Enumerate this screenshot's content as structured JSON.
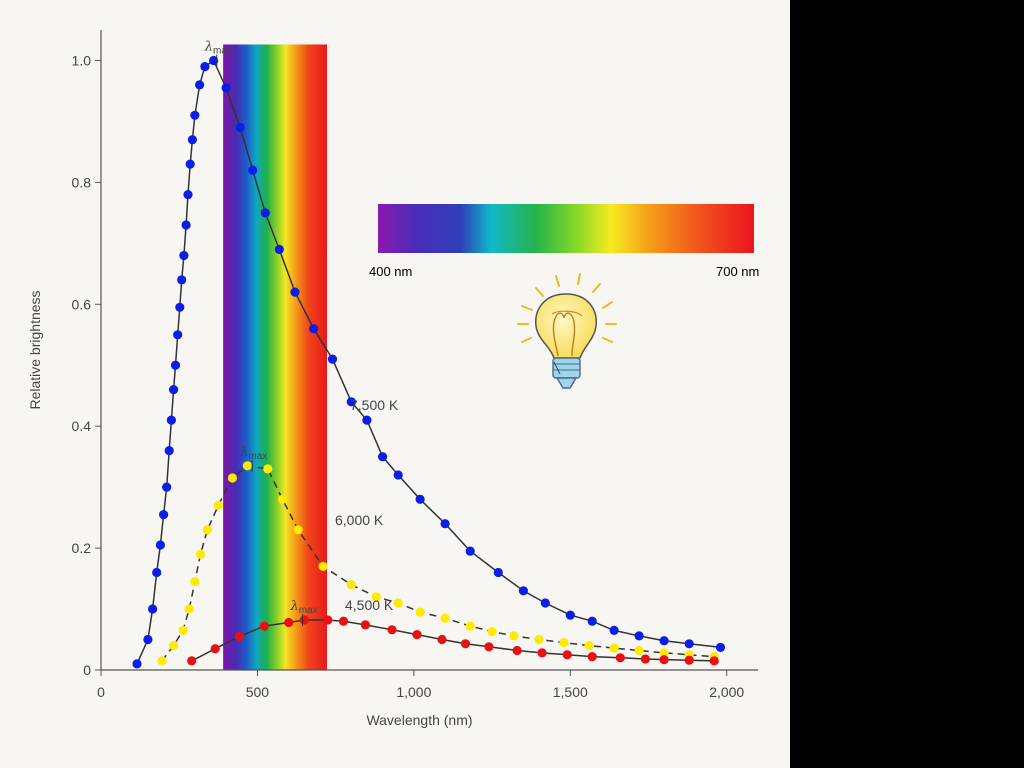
{
  "chart_data": {
    "type": "line",
    "xlabel": "Wavelength (nm)",
    "ylabel": "Relative brightness",
    "xlim": [
      0,
      2100
    ],
    "ylim": [
      0,
      1.05
    ],
    "x_ticks": [
      0,
      500,
      1000,
      1500,
      2000
    ],
    "x_tick_labels": [
      "0",
      "500",
      "1,000",
      "1,500",
      "2,000"
    ],
    "y_ticks": [
      0,
      0.2,
      0.4,
      0.6,
      0.8,
      1.0
    ],
    "y_tick_labels": [
      "0",
      "0.2",
      "0.4",
      "0.6",
      "0.8",
      "1.0"
    ],
    "visible_band_nm": [
      400,
      700
    ],
    "lambda_symbol": "λ",
    "lambda_subscript": "max",
    "series": [
      {
        "name": "7,500 K",
        "color": "#0a1ee6",
        "line_style": "solid",
        "peak_nm": 370,
        "peak_value": 1.0,
        "x": [
          115,
          150,
          165,
          178,
          190,
          200,
          210,
          218,
          225,
          232,
          238,
          245,
          252,
          258,
          265,
          272,
          278,
          285,
          292,
          300,
          315,
          332,
          360,
          400,
          445,
          485,
          525,
          570,
          620,
          680,
          740,
          800,
          850,
          900,
          950,
          1020,
          1100,
          1180,
          1270,
          1350,
          1420,
          1500,
          1570,
          1640,
          1720,
          1800,
          1880,
          1980
        ],
        "y": [
          0.01,
          0.05,
          0.1,
          0.16,
          0.205,
          0.255,
          0.3,
          0.36,
          0.41,
          0.46,
          0.5,
          0.55,
          0.595,
          0.64,
          0.68,
          0.73,
          0.78,
          0.83,
          0.87,
          0.91,
          0.96,
          0.99,
          1.0,
          0.955,
          0.89,
          0.82,
          0.75,
          0.69,
          0.62,
          0.56,
          0.51,
          0.44,
          0.41,
          0.35,
          0.32,
          0.28,
          0.24,
          0.195,
          0.16,
          0.13,
          0.11,
          0.09,
          0.08,
          0.065,
          0.056,
          0.048,
          0.043,
          0.037
        ]
      },
      {
        "name": "6,000 K",
        "color": "#ffea00",
        "line_style": "dashed",
        "peak_nm": 483,
        "peak_value": 0.335,
        "x": [
          195,
          232,
          262,
          282,
          300,
          318,
          340,
          375,
          420,
          468,
          533,
          580,
          630,
          710,
          800,
          880,
          950,
          1020,
          1100,
          1180,
          1250,
          1320,
          1400,
          1480,
          1560,
          1640,
          1720,
          1800,
          1880,
          1960
        ],
        "y": [
          0.015,
          0.04,
          0.065,
          0.1,
          0.145,
          0.19,
          0.23,
          0.27,
          0.315,
          0.335,
          0.33,
          0.28,
          0.23,
          0.17,
          0.14,
          0.12,
          0.11,
          0.095,
          0.085,
          0.072,
          0.063,
          0.056,
          0.05,
          0.045,
          0.04,
          0.036,
          0.032,
          0.028,
          0.025,
          0.022
        ]
      },
      {
        "name": "4,500 K",
        "color": "#e81010",
        "line_style": "solid",
        "peak_nm": 644,
        "peak_value": 0.082,
        "x": [
          290,
          365,
          442,
          522,
          600,
          650,
          725,
          775,
          845,
          930,
          1010,
          1090,
          1165,
          1240,
          1330,
          1410,
          1490,
          1570,
          1660,
          1740,
          1800,
          1880,
          1960
        ],
        "y": [
          0.015,
          0.035,
          0.055,
          0.072,
          0.078,
          0.082,
          0.082,
          0.08,
          0.074,
          0.066,
          0.058,
          0.05,
          0.043,
          0.038,
          0.032,
          0.028,
          0.025,
          0.022,
          0.02,
          0.018,
          0.017,
          0.016,
          0.015
        ]
      }
    ]
  },
  "reference_strip": {
    "start_label": "400 nm",
    "end_label": "700 nm"
  },
  "icons": {
    "light_bulb": "light-bulb-icon"
  }
}
